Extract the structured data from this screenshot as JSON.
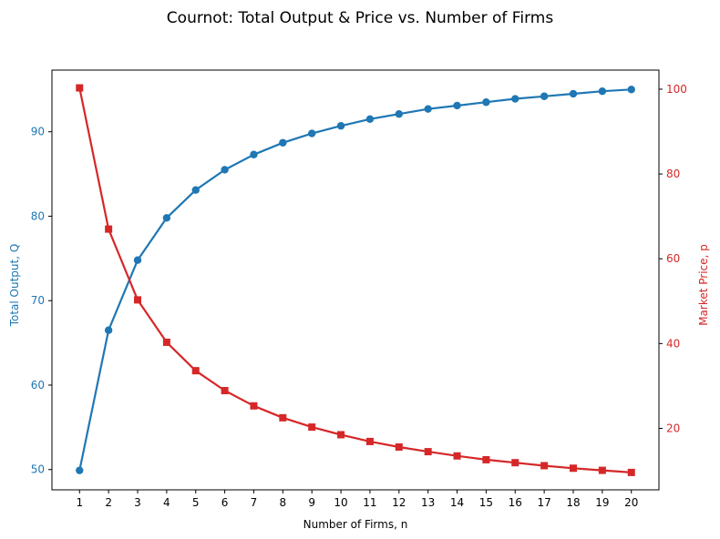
{
  "chart_data": {
    "type": "line",
    "title": "Cournot: Total Output & Price vs. Number of Firms",
    "xlabel": "Number of Firms, n",
    "ylabel_left": "Total Output, Q",
    "ylabel_right": "Market Price, p",
    "x": [
      1,
      2,
      3,
      4,
      5,
      6,
      7,
      8,
      9,
      10,
      11,
      12,
      13,
      14,
      15,
      16,
      17,
      18,
      19,
      20
    ],
    "xlim": [
      0.05,
      20.95
    ],
    "ylim_left": [
      47.6,
      97.3
    ],
    "ylim_right": [
      5.5,
      104.5
    ],
    "yticks_left": [
      50,
      60,
      70,
      80,
      90
    ],
    "yticks_right": [
      20,
      40,
      60,
      80,
      100
    ],
    "grid": false,
    "legend": "none",
    "series": [
      {
        "name": "",
        "axis": "left",
        "marker": "circle",
        "color": "#1f77b4",
        "values": [
          49.9,
          66.5,
          74.8,
          79.8,
          83.1,
          85.5,
          87.3,
          88.7,
          89.8,
          90.7,
          91.5,
          92.1,
          92.7,
          93.1,
          93.5,
          93.9,
          94.2,
          94.5,
          94.8,
          95.0
        ]
      },
      {
        "name": "",
        "axis": "right",
        "marker": "square",
        "color": "#d62728",
        "values": [
          100.3,
          67.0,
          50.3,
          40.3,
          33.6,
          28.9,
          25.3,
          22.5,
          20.3,
          18.5,
          16.9,
          15.6,
          14.5,
          13.5,
          12.6,
          11.9,
          11.2,
          10.6,
          10.1,
          9.6
        ]
      }
    ]
  },
  "colors": {
    "left_axis": "#1f77b4",
    "right_axis": "#d62728",
    "frame": "#000000"
  }
}
